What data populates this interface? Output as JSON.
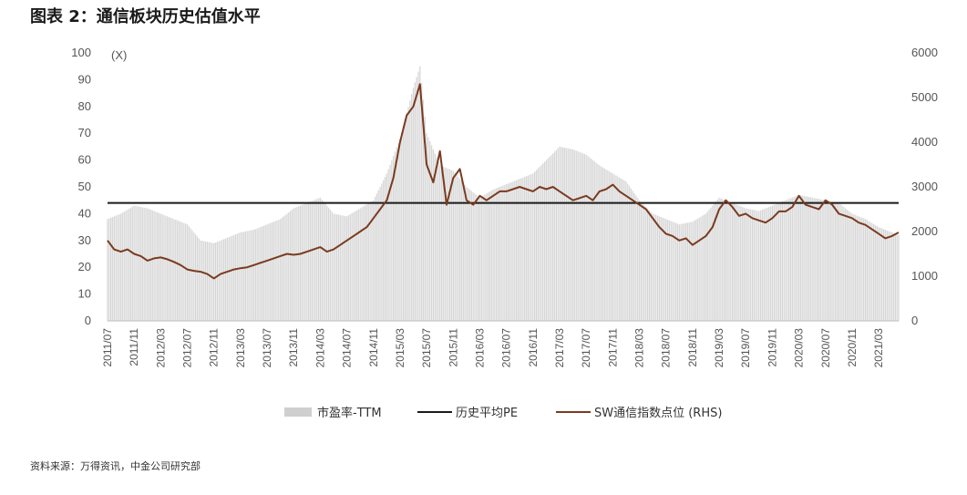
{
  "header": {
    "title": "图表 2：通信板块历史估值水平"
  },
  "footer": {
    "source": "资料来源：万得资讯，中金公司研究部"
  },
  "chart_data": {
    "type": "bar+line",
    "title": "图表 2：通信板块历史估值水平",
    "y_left": {
      "unit_label": "(X)",
      "range": [
        0,
        100
      ],
      "ticks": [
        0,
        10,
        20,
        30,
        40,
        50,
        60,
        70,
        80,
        90,
        100
      ]
    },
    "y_right": {
      "range": [
        0,
        6000
      ],
      "ticks": [
        0,
        1000,
        2000,
        3000,
        4000,
        5000,
        6000
      ]
    },
    "x_range": [
      "2011-07",
      "2021-06"
    ],
    "x_ticks": [
      "2011/07",
      "2011/11",
      "2012/03",
      "2012/07",
      "2012/11",
      "2013/03",
      "2013/07",
      "2013/11",
      "2014/03",
      "2014/07",
      "2014/11",
      "2015/03",
      "2015/07",
      "2015/11",
      "2016/03",
      "2016/07",
      "2016/11",
      "2017/03",
      "2017/07",
      "2017/11",
      "2018/03",
      "2018/07",
      "2018/11",
      "2019/03",
      "2019/07",
      "2019/11",
      "2020/03",
      "2020/07",
      "2020/11",
      "2021/03"
    ],
    "series": [
      {
        "name": "市盈率-TTM",
        "kind": "bar",
        "axis": "left",
        "color": "#cfcfcf",
        "x": [
          "2011-07",
          "2011-09",
          "2011-11",
          "2012-01",
          "2012-03",
          "2012-05",
          "2012-07",
          "2012-09",
          "2012-11",
          "2013-01",
          "2013-03",
          "2013-05",
          "2013-07",
          "2013-09",
          "2013-11",
          "2014-01",
          "2014-03",
          "2014-05",
          "2014-07",
          "2014-09",
          "2014-11",
          "2015-01",
          "2015-03",
          "2015-05",
          "2015-06",
          "2015-07",
          "2015-09",
          "2015-11",
          "2016-01",
          "2016-03",
          "2016-05",
          "2016-07",
          "2016-09",
          "2016-11",
          "2017-01",
          "2017-03",
          "2017-05",
          "2017-07",
          "2017-09",
          "2017-11",
          "2018-01",
          "2018-03",
          "2018-05",
          "2018-07",
          "2018-09",
          "2018-11",
          "2019-01",
          "2019-03",
          "2019-05",
          "2019-07",
          "2019-09",
          "2019-11",
          "2020-01",
          "2020-03",
          "2020-05",
          "2020-07",
          "2020-09",
          "2020-11",
          "2021-01",
          "2021-03",
          "2021-05",
          "2021-06"
        ],
        "values": [
          38,
          40,
          43,
          42,
          40,
          38,
          36,
          30,
          29,
          31,
          33,
          34,
          36,
          38,
          42,
          44,
          46,
          40,
          39,
          42,
          45,
          55,
          68,
          87,
          95,
          70,
          58,
          56,
          50,
          46,
          49,
          51,
          53,
          55,
          60,
          65,
          64,
          62,
          58,
          55,
          52,
          45,
          40,
          38,
          36,
          37,
          40,
          46,
          44,
          42,
          41,
          43,
          45,
          47,
          46,
          45,
          44,
          40,
          38,
          35,
          33,
          32
        ]
      },
      {
        "name": "历史平均PE",
        "kind": "line",
        "axis": "left",
        "color": "#1a1a1a",
        "value": 44
      },
      {
        "name": "SW通信指数点位 (RHS)",
        "kind": "line",
        "axis": "right",
        "color": "#7a3b20",
        "x": [
          "2011-07",
          "2011-08",
          "2011-09",
          "2011-10",
          "2011-11",
          "2011-12",
          "2012-01",
          "2012-02",
          "2012-03",
          "2012-04",
          "2012-05",
          "2012-06",
          "2012-07",
          "2012-08",
          "2012-09",
          "2012-10",
          "2012-11",
          "2012-12",
          "2013-01",
          "2013-02",
          "2013-03",
          "2013-04",
          "2013-05",
          "2013-06",
          "2013-07",
          "2013-08",
          "2013-09",
          "2013-10",
          "2013-11",
          "2013-12",
          "2014-01",
          "2014-02",
          "2014-03",
          "2014-04",
          "2014-05",
          "2014-06",
          "2014-07",
          "2014-08",
          "2014-09",
          "2014-10",
          "2014-11",
          "2014-12",
          "2015-01",
          "2015-02",
          "2015-03",
          "2015-04",
          "2015-05",
          "2015-06",
          "2015-07",
          "2015-08",
          "2015-09",
          "2015-10",
          "2015-11",
          "2015-12",
          "2016-01",
          "2016-02",
          "2016-03",
          "2016-04",
          "2016-05",
          "2016-06",
          "2016-07",
          "2016-08",
          "2016-09",
          "2016-10",
          "2016-11",
          "2016-12",
          "2017-01",
          "2017-02",
          "2017-03",
          "2017-04",
          "2017-05",
          "2017-06",
          "2017-07",
          "2017-08",
          "2017-09",
          "2017-10",
          "2017-11",
          "2017-12",
          "2018-01",
          "2018-02",
          "2018-03",
          "2018-04",
          "2018-05",
          "2018-06",
          "2018-07",
          "2018-08",
          "2018-09",
          "2018-10",
          "2018-11",
          "2018-12",
          "2019-01",
          "2019-02",
          "2019-03",
          "2019-04",
          "2019-05",
          "2019-06",
          "2019-07",
          "2019-08",
          "2019-09",
          "2019-10",
          "2019-11",
          "2019-12",
          "2020-01",
          "2020-02",
          "2020-03",
          "2020-04",
          "2020-05",
          "2020-06",
          "2020-07",
          "2020-08",
          "2020-09",
          "2020-10",
          "2020-11",
          "2020-12",
          "2021-01",
          "2021-02",
          "2021-03",
          "2021-04",
          "2021-05",
          "2021-06"
        ],
        "values": [
          1800,
          1600,
          1550,
          1600,
          1500,
          1450,
          1350,
          1400,
          1420,
          1380,
          1320,
          1250,
          1150,
          1120,
          1100,
          1050,
          950,
          1050,
          1100,
          1150,
          1180,
          1200,
          1250,
          1300,
          1350,
          1400,
          1450,
          1500,
          1480,
          1500,
          1550,
          1600,
          1650,
          1550,
          1600,
          1700,
          1800,
          1900,
          2000,
          2100,
          2300,
          2500,
          2700,
          3200,
          4000,
          4600,
          4800,
          5300,
          3500,
          3100,
          3800,
          2600,
          3200,
          3400,
          2700,
          2600,
          2800,
          2700,
          2800,
          2900,
          2900,
          2950,
          3000,
          2950,
          2900,
          3000,
          2950,
          3000,
          2900,
          2800,
          2700,
          2750,
          2800,
          2700,
          2900,
          2950,
          3050,
          2900,
          2800,
          2700,
          2600,
          2500,
          2300,
          2100,
          1950,
          1900,
          1800,
          1850,
          1700,
          1800,
          1900,
          2100,
          2500,
          2700,
          2550,
          2350,
          2400,
          2300,
          2250,
          2200,
          2300,
          2450,
          2450,
          2550,
          2800,
          2600,
          2550,
          2500,
          2700,
          2600,
          2400,
          2350,
          2300,
          2200,
          2150,
          2050,
          1950,
          1850,
          1900,
          1980
        ]
      }
    ],
    "legend_position": "bottom-center",
    "grid": false
  }
}
